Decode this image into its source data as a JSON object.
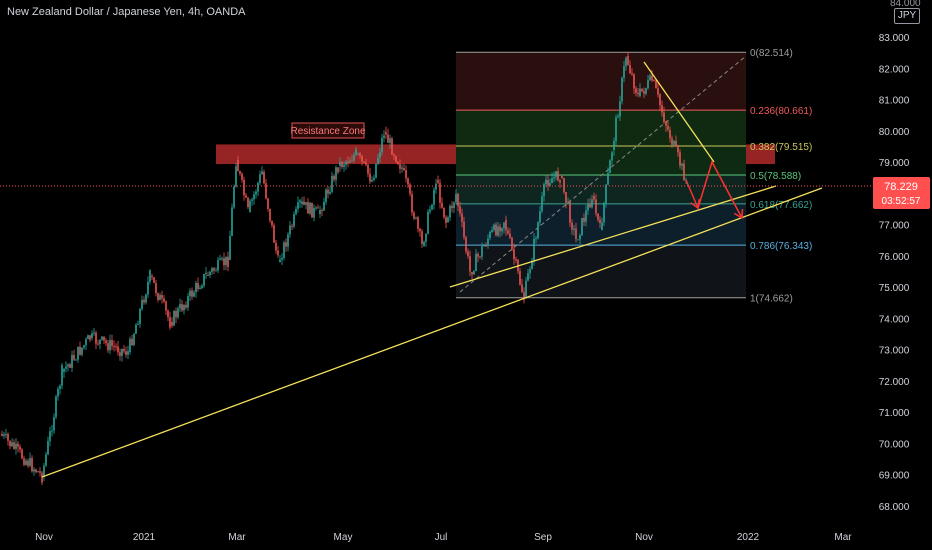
{
  "header": {
    "title": "New Zealand Dollar / Japanese Yen, 4h, OANDA",
    "currency": "JPY",
    "top_tick": "84.000"
  },
  "price_tag": {
    "price": "78.229",
    "countdown": "03:52:57",
    "color": "#ff4f4f"
  },
  "colors": {
    "bg": "#000000",
    "up": "#26a69a",
    "down": "#ef5350",
    "trend": "#f5e15a",
    "zone": "#b22a2a",
    "arrow": "#ff3030",
    "axis_text": "#d1d4dc"
  },
  "chart_data": {
    "type": "candlestick",
    "title": "New Zealand Dollar / Japanese Yen, 4h, OANDA",
    "y_ticks": [
      "68.000",
      "69.000",
      "70.000",
      "71.000",
      "72.000",
      "73.000",
      "74.000",
      "75.000",
      "76.000",
      "77.000",
      "78.000",
      "79.000",
      "80.000",
      "81.000",
      "82.000",
      "83.000"
    ],
    "x_ticks": [
      "Nov",
      "2021",
      "Mar",
      "May",
      "Jul",
      "Sep",
      "Nov",
      "2022",
      "Mar"
    ],
    "ylim": [
      67.5,
      84.0
    ],
    "grid": false,
    "price_path": [
      [
        "Nov",
        70.2
      ],
      [
        "Nov",
        69.0
      ],
      [
        "2021",
        73.3
      ],
      [
        "2021",
        75.2
      ],
      [
        "2021",
        73.8
      ],
      [
        "Mar",
        79.3
      ],
      [
        "Mar",
        75.9
      ],
      [
        "Mar",
        78.8
      ],
      [
        "May",
        79.6
      ],
      [
        "May",
        79.0
      ],
      [
        "May",
        80.0
      ],
      [
        "Jul",
        76.8
      ],
      [
        "Jul",
        77.5
      ],
      [
        "Jul",
        74.7
      ],
      [
        "Sep",
        78.5
      ],
      [
        "Sep",
        76.7
      ],
      [
        "Nov",
        82.5
      ],
      [
        "Nov",
        78.3
      ]
    ],
    "annotations": [
      {
        "type": "zone",
        "label": "Resistance Zone",
        "y_range": [
          79.0,
          79.5
        ]
      },
      {
        "type": "trendline",
        "from": [
          "Nov",
          69.0
        ],
        "to": [
          "Mar",
          78.0
        ]
      },
      {
        "type": "trendline",
        "from": [
          "Jul",
          74.7
        ],
        "to": [
          "2022",
          78.0
        ]
      },
      {
        "type": "trendline",
        "from": [
          "Nov",
          82.3
        ],
        "to": [
          "Nov",
          79.0
        ]
      },
      {
        "type": "fib_retracement",
        "levels": [
          {
            "label": "0(82.514)",
            "value": 82.514,
            "color": "#9e9e9e"
          },
          {
            "label": "0.236(80.661)",
            "value": 80.661,
            "color": "#f05a5a"
          },
          {
            "label": "0.382(79.515)",
            "value": 79.515,
            "color": "#c9c85a"
          },
          {
            "label": "0.5(78.588)",
            "value": 78.588,
            "color": "#5ac67a"
          },
          {
            "label": "0.618(77.662)",
            "value": 77.662,
            "color": "#3aa393"
          },
          {
            "label": "0.786(76.343)",
            "value": 76.343,
            "color": "#5ab0e0"
          },
          {
            "label": "1(74.662)",
            "value": 74.662,
            "color": "#9e9e9e"
          }
        ]
      },
      {
        "type": "projection_arrows",
        "points": [
          [
            "Nov",
            78.3
          ],
          [
            "Nov",
            77.4
          ],
          [
            "2022",
            79.1
          ],
          [
            "2022",
            77.1
          ]
        ]
      }
    ]
  }
}
